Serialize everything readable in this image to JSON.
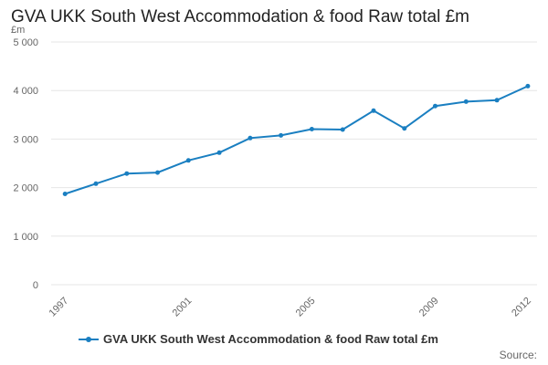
{
  "colors": {
    "series": "#1a7fc1",
    "grid": "#e6e6e6",
    "axis": "#ccd6eb"
  },
  "legend": {
    "label": "GVA UKK South West Accommodation & food Raw total £m"
  },
  "source_label": "Source:",
  "chart_data": {
    "type": "line",
    "title": "GVA UKK South West Accommodation & food Raw total £m",
    "ylabel": "£m",
    "xlabel": "",
    "ylim": [
      0,
      5000
    ],
    "yticks": [
      0,
      1000,
      2000,
      3000,
      4000,
      5000
    ],
    "ytick_labels": [
      "0",
      "1 000",
      "2 000",
      "3 000",
      "4 000",
      "5 000"
    ],
    "xticks": [
      1997,
      2001,
      2005,
      2009,
      2012
    ],
    "xtick_labels": [
      "1997",
      "2001",
      "2005",
      "2009",
      "2012"
    ],
    "grid": true,
    "legend_position": "bottom",
    "series": [
      {
        "name": "GVA UKK South West Accommodation & food Raw total £m",
        "x": [
          1997,
          1998,
          1999,
          2000,
          2001,
          2002,
          2003,
          2004,
          2005,
          2006,
          2007,
          2008,
          2009,
          2010,
          2011,
          2012
        ],
        "values": [
          1870,
          2080,
          2290,
          2310,
          2560,
          2720,
          3020,
          3075,
          3205,
          3195,
          3585,
          3220,
          3680,
          3770,
          3800,
          4090
        ]
      }
    ]
  }
}
